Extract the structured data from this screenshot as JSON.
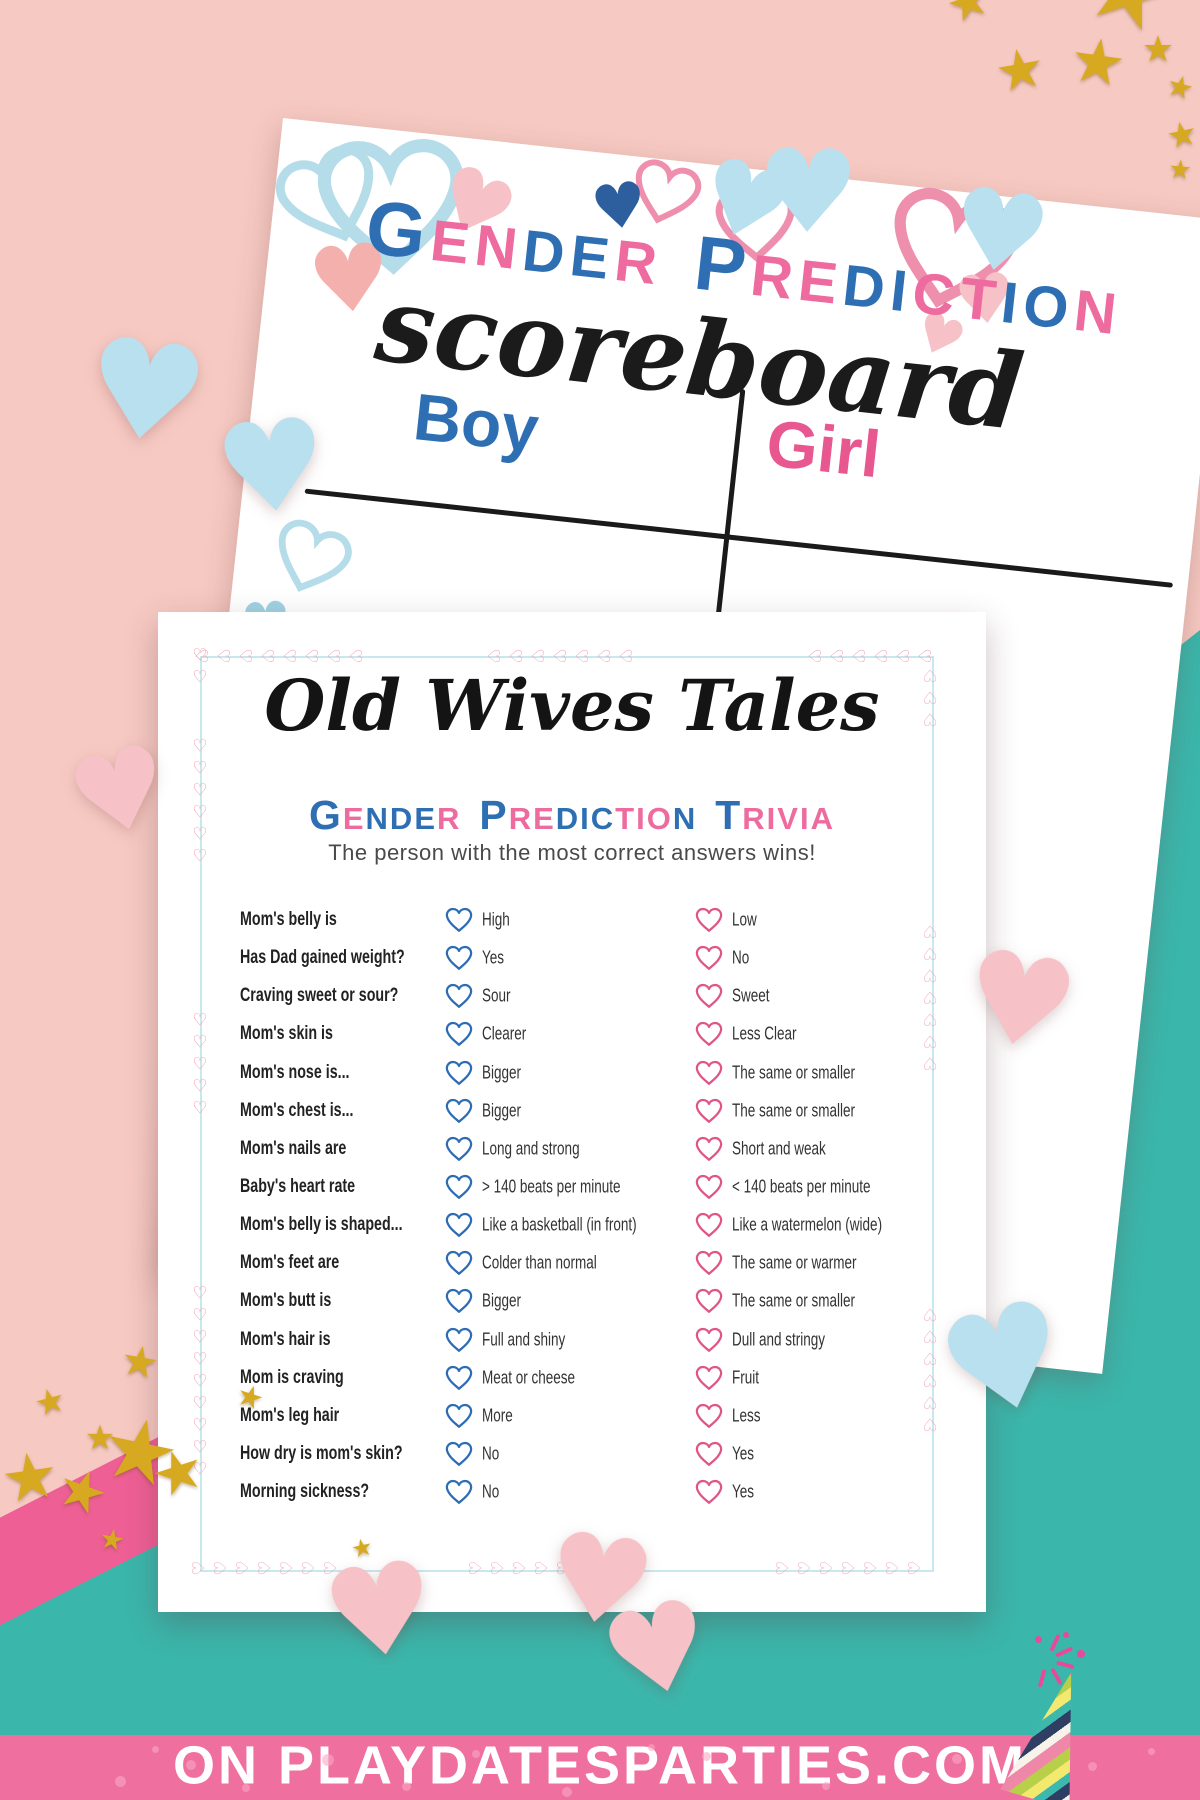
{
  "scoreboard": {
    "title_words": [
      {
        "text": "Gender",
        "colors": "bppbbp"
      },
      {
        "text": "Prediction",
        "colors": "bppbbppbbp"
      }
    ],
    "script_title": "scoreboard",
    "boy_label": "Boy",
    "girl_label": "Girl"
  },
  "trivia": {
    "script_title": "Old Wives Tales",
    "subtitle_words": [
      {
        "text": "Gender",
        "colors": "bpbbbp"
      },
      {
        "text": "Prediction",
        "colors": "bppbbbpppb"
      },
      {
        "text": "Trivia",
        "colors": "bppppp"
      }
    ],
    "tagline": "The person with the most correct answers wins!",
    "rows": [
      {
        "q": "Mom's belly is",
        "boy": "High",
        "girl": "Low"
      },
      {
        "q": "Has Dad gained weight?",
        "boy": "Yes",
        "girl": "No"
      },
      {
        "q": "Craving sweet or sour?",
        "boy": "Sour",
        "girl": "Sweet"
      },
      {
        "q": "Mom's skin is",
        "boy": "Clearer",
        "girl": "Less Clear"
      },
      {
        "q": "Mom's nose is...",
        "boy": "Bigger",
        "girl": "The same or smaller"
      },
      {
        "q": "Mom's chest is...",
        "boy": "Bigger",
        "girl": "The same or smaller"
      },
      {
        "q": "Mom's nails are",
        "boy": "Long and strong",
        "girl": "Short and weak"
      },
      {
        "q": "Baby's heart rate",
        "boy": "> 140 beats per minute",
        "girl": "< 140 beats per minute"
      },
      {
        "q": "Mom's belly is shaped...",
        "boy": "Like a basketball (in front)",
        "girl": "Like a watermelon (wide)"
      },
      {
        "q": "Mom's feet are",
        "boy": "Colder than normal",
        "girl": "The same or warmer"
      },
      {
        "q": "Mom's butt is",
        "boy": "Bigger",
        "girl": "The same or smaller"
      },
      {
        "q": "Mom's hair is",
        "boy": "Full and shiny",
        "girl": "Dull and stringy"
      },
      {
        "q": "Mom is craving",
        "boy": "Meat or cheese",
        "girl": "Fruit"
      },
      {
        "q": "Mom's leg hair",
        "boy": "More",
        "girl": "Less"
      },
      {
        "q": "How dry is mom's skin?",
        "boy": "No",
        "girl": "Yes"
      },
      {
        "q": "Morning sickness?",
        "boy": "No",
        "girl": "Yes"
      }
    ]
  },
  "footer": {
    "site_text": "ON PLAYDATESPARTIES.COM"
  },
  "colors": {
    "boy_blue": "#2e6fb4",
    "girl_pink": "#e8578f",
    "background_pink": "#f6c9c2",
    "background_teal": "#3bb6ab",
    "banner_pink": "#ef6f9f",
    "ribbon_pink": "#ee5f95",
    "gold": "#d7a921",
    "heart_light_blue": "#b9e0ee",
    "heart_light_blue_dark": "#9fd3e4",
    "heart_light_pink": "#f6c2c7",
    "heart_salmon": "#f4b0ac",
    "heart_navy": "#2d5f9e",
    "outline_heart_blue": "#b5dce9",
    "outline_heart_pink": "#ef8fae",
    "border_heart_pink": "#ef97ab",
    "border_line_blue": "#c8e8f0"
  },
  "decor": {
    "heart_solid_glyph": "♥",
    "heart_outline_glyph": "♡",
    "star_glyph": "★"
  }
}
